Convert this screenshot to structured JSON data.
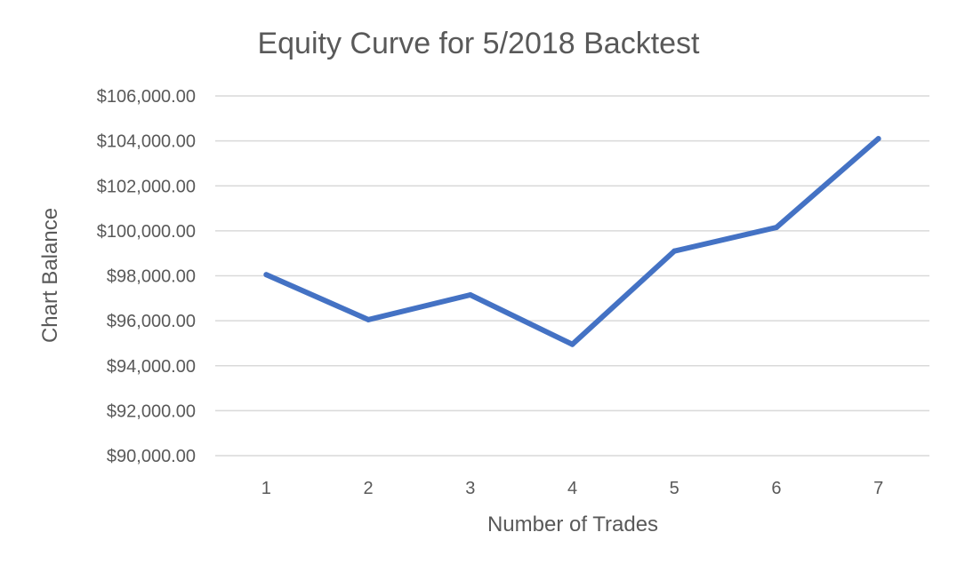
{
  "chart_data": {
    "type": "line",
    "title": "Equity Curve for 5/2018 Backtest",
    "xlabel": "Number of Trades",
    "ylabel": "Chart Balance",
    "categories": [
      "1",
      "2",
      "3",
      "4",
      "5",
      "6",
      "7"
    ],
    "series": [
      {
        "values": [
          98050,
          96050,
          97150,
          94950,
          99100,
          100150,
          104100
        ]
      }
    ],
    "ylim": [
      90000,
      106000
    ],
    "yticks": [
      90000,
      92000,
      94000,
      96000,
      98000,
      100000,
      102000,
      104000,
      106000
    ],
    "ytick_labels": [
      "$90,000.00",
      "$92,000.00",
      "$94,000.00",
      "$96,000.00",
      "$98,000.00",
      "$100,000.00",
      "$102,000.00",
      "$104,000.00",
      "$106,000.00"
    ],
    "grid": true,
    "legend": "none",
    "colors": {
      "series": "#4472c4",
      "grid": "#d9d9d9",
      "text": "#595959"
    }
  }
}
